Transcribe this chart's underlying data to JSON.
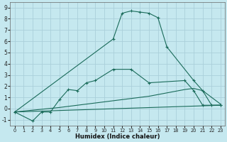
{
  "xlabel": "Humidex (Indice chaleur)",
  "background_color": "#c5e8ef",
  "grid_color": "#aacfda",
  "line_color": "#1a6b5a",
  "xlim": [
    -0.5,
    23.5
  ],
  "ylim": [
    -1.5,
    9.5
  ],
  "xticks": [
    0,
    1,
    2,
    3,
    4,
    5,
    6,
    7,
    8,
    9,
    10,
    11,
    12,
    13,
    14,
    15,
    16,
    17,
    18,
    19,
    20,
    21,
    22,
    23
  ],
  "yticks": [
    -1,
    0,
    1,
    2,
    3,
    4,
    5,
    6,
    7,
    8,
    9
  ],
  "line_series": [
    {
      "x": [
        0,
        11,
        12,
        13,
        14,
        15,
        16,
        17,
        20,
        21,
        22,
        23
      ],
      "y": [
        -0.3,
        6.2,
        8.5,
        8.7,
        8.6,
        8.5,
        8.1,
        5.5,
        2.5,
        1.6,
        0.3,
        0.3
      ],
      "marker": true
    },
    {
      "x": [
        0,
        2,
        3,
        4,
        5,
        6,
        7,
        8,
        9,
        11,
        13,
        15,
        19,
        20,
        21,
        23
      ],
      "y": [
        -0.3,
        -1.1,
        -0.3,
        -0.3,
        0.8,
        1.7,
        1.6,
        2.3,
        2.5,
        3.5,
        3.5,
        2.3,
        2.5,
        1.6,
        0.3,
        0.3
      ],
      "marker": true
    },
    {
      "x": [
        0,
        5,
        10,
        15,
        19,
        20,
        21,
        23
      ],
      "y": [
        -0.3,
        0.1,
        0.6,
        1.1,
        1.7,
        1.8,
        1.6,
        0.4
      ],
      "marker": false
    },
    {
      "x": [
        0,
        23
      ],
      "y": [
        -0.3,
        0.3
      ],
      "marker": false
    }
  ]
}
